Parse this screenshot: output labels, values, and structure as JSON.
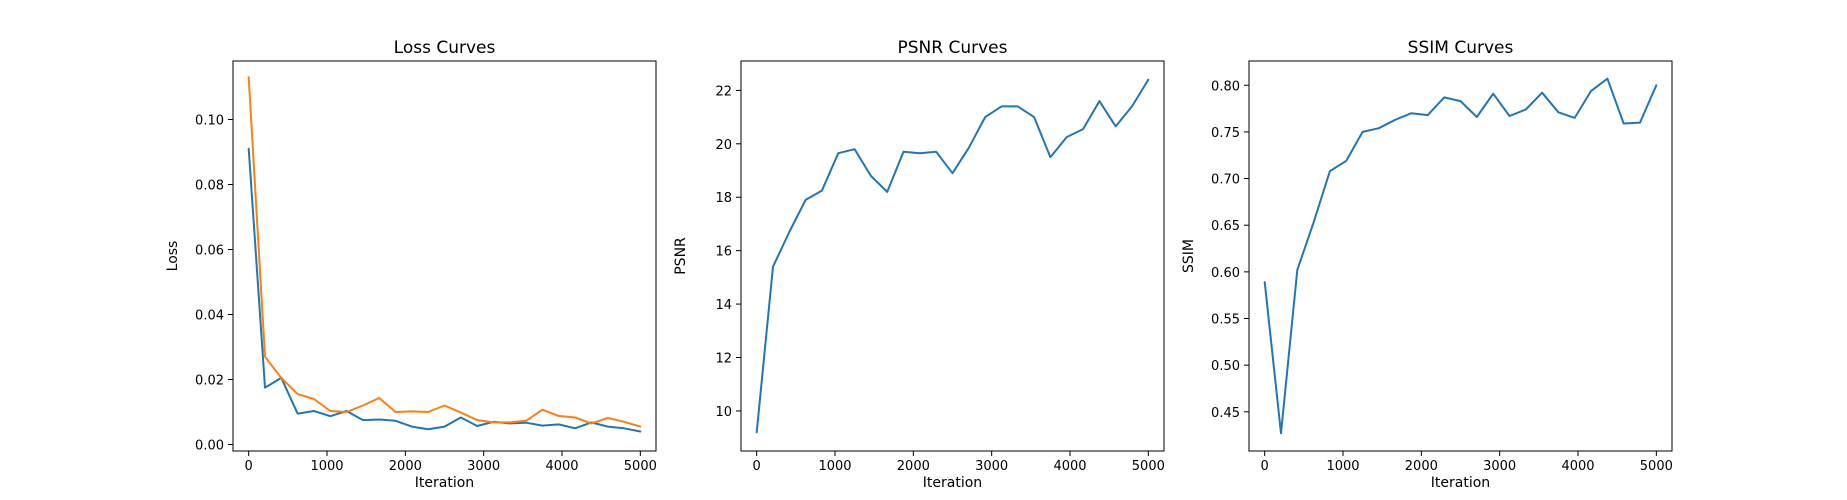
{
  "chart_data": [
    {
      "type": "line",
      "title": "Loss Curves",
      "xlabel": "Iteration",
      "ylabel": "Loss",
      "xlim": [
        -200,
        5200
      ],
      "ylim": [
        -0.002,
        0.118
      ],
      "xticks": [
        0,
        1000,
        2000,
        3000,
        4000,
        5000
      ],
      "yticks": [
        0.0,
        0.02,
        0.04,
        0.06,
        0.08,
        0.1
      ],
      "ytick_labels": [
        "0.00",
        "0.02",
        "0.04",
        "0.06",
        "0.08",
        "0.10"
      ],
      "x": [
        0,
        208,
        417,
        625,
        833,
        1042,
        1250,
        1458,
        1667,
        1875,
        2083,
        2292,
        2500,
        2708,
        2917,
        3125,
        3333,
        3542,
        3750,
        3958,
        4167,
        4375,
        4583,
        4792,
        5000
      ],
      "series": [
        {
          "color": "#1f77b4",
          "values": [
            0.091,
            0.0175,
            0.0205,
            0.0095,
            0.0103,
            0.0087,
            0.0103,
            0.0075,
            0.0077,
            0.0073,
            0.0055,
            0.0047,
            0.0055,
            0.0083,
            0.0057,
            0.007,
            0.0065,
            0.0067,
            0.0058,
            0.0062,
            0.005,
            0.0068,
            0.0055,
            0.005,
            0.004
          ]
        },
        {
          "color": "#ff7f0e",
          "values": [
            0.113,
            0.027,
            0.0205,
            0.0155,
            0.014,
            0.0103,
            0.01,
            0.012,
            0.0143,
            0.01,
            0.0102,
            0.01,
            0.012,
            0.0098,
            0.0075,
            0.0068,
            0.0068,
            0.0073,
            0.0107,
            0.0088,
            0.0083,
            0.0065,
            0.0082,
            0.007,
            0.0055
          ]
        }
      ]
    },
    {
      "type": "line",
      "title": "PSNR Curves",
      "xlabel": "Iteration",
      "ylabel": "PSNR",
      "xlim": [
        -200,
        5200
      ],
      "ylim": [
        8.5,
        23.1
      ],
      "xticks": [
        0,
        1000,
        2000,
        3000,
        4000,
        5000
      ],
      "yticks": [
        10,
        12,
        14,
        16,
        18,
        20,
        22
      ],
      "ytick_labels": [
        "10",
        "12",
        "14",
        "16",
        "18",
        "20",
        "22"
      ],
      "x": [
        0,
        208,
        417,
        625,
        833,
        1042,
        1250,
        1458,
        1667,
        1875,
        2083,
        2292,
        2500,
        2708,
        2917,
        3125,
        3333,
        3542,
        3750,
        3958,
        4167,
        4375,
        4583,
        4792,
        5000
      ],
      "series": [
        {
          "color": "#1f77b4",
          "values": [
            9.2,
            15.4,
            16.7,
            17.9,
            18.25,
            19.65,
            19.8,
            18.8,
            18.2,
            19.7,
            19.65,
            19.7,
            18.9,
            19.85,
            21.0,
            21.4,
            21.4,
            21.0,
            19.5,
            20.25,
            20.55,
            21.6,
            20.65,
            21.4,
            22.4
          ]
        }
      ]
    },
    {
      "type": "line",
      "title": "SSIM Curves",
      "xlabel": "Iteration",
      "ylabel": "SSIM",
      "xlim": [
        -200,
        5200
      ],
      "ylim": [
        0.408,
        0.826
      ],
      "xticks": [
        0,
        1000,
        2000,
        3000,
        4000,
        5000
      ],
      "yticks": [
        0.45,
        0.5,
        0.55,
        0.6,
        0.65,
        0.7,
        0.75,
        0.8
      ],
      "ytick_labels": [
        "0.45",
        "0.50",
        "0.55",
        "0.60",
        "0.65",
        "0.70",
        "0.75",
        "0.80"
      ],
      "x": [
        0,
        208,
        417,
        625,
        833,
        1042,
        1250,
        1458,
        1667,
        1875,
        2083,
        2292,
        2500,
        2708,
        2917,
        3125,
        3333,
        3542,
        3750,
        3958,
        4167,
        4375,
        4583,
        4792,
        5000
      ],
      "series": [
        {
          "color": "#1f77b4",
          "values": [
            0.589,
            0.427,
            0.602,
            0.653,
            0.708,
            0.719,
            0.75,
            0.754,
            0.763,
            0.77,
            0.768,
            0.787,
            0.783,
            0.766,
            0.791,
            0.767,
            0.774,
            0.792,
            0.771,
            0.765,
            0.794,
            0.807,
            0.759,
            0.76,
            0.8
          ]
        }
      ]
    }
  ]
}
